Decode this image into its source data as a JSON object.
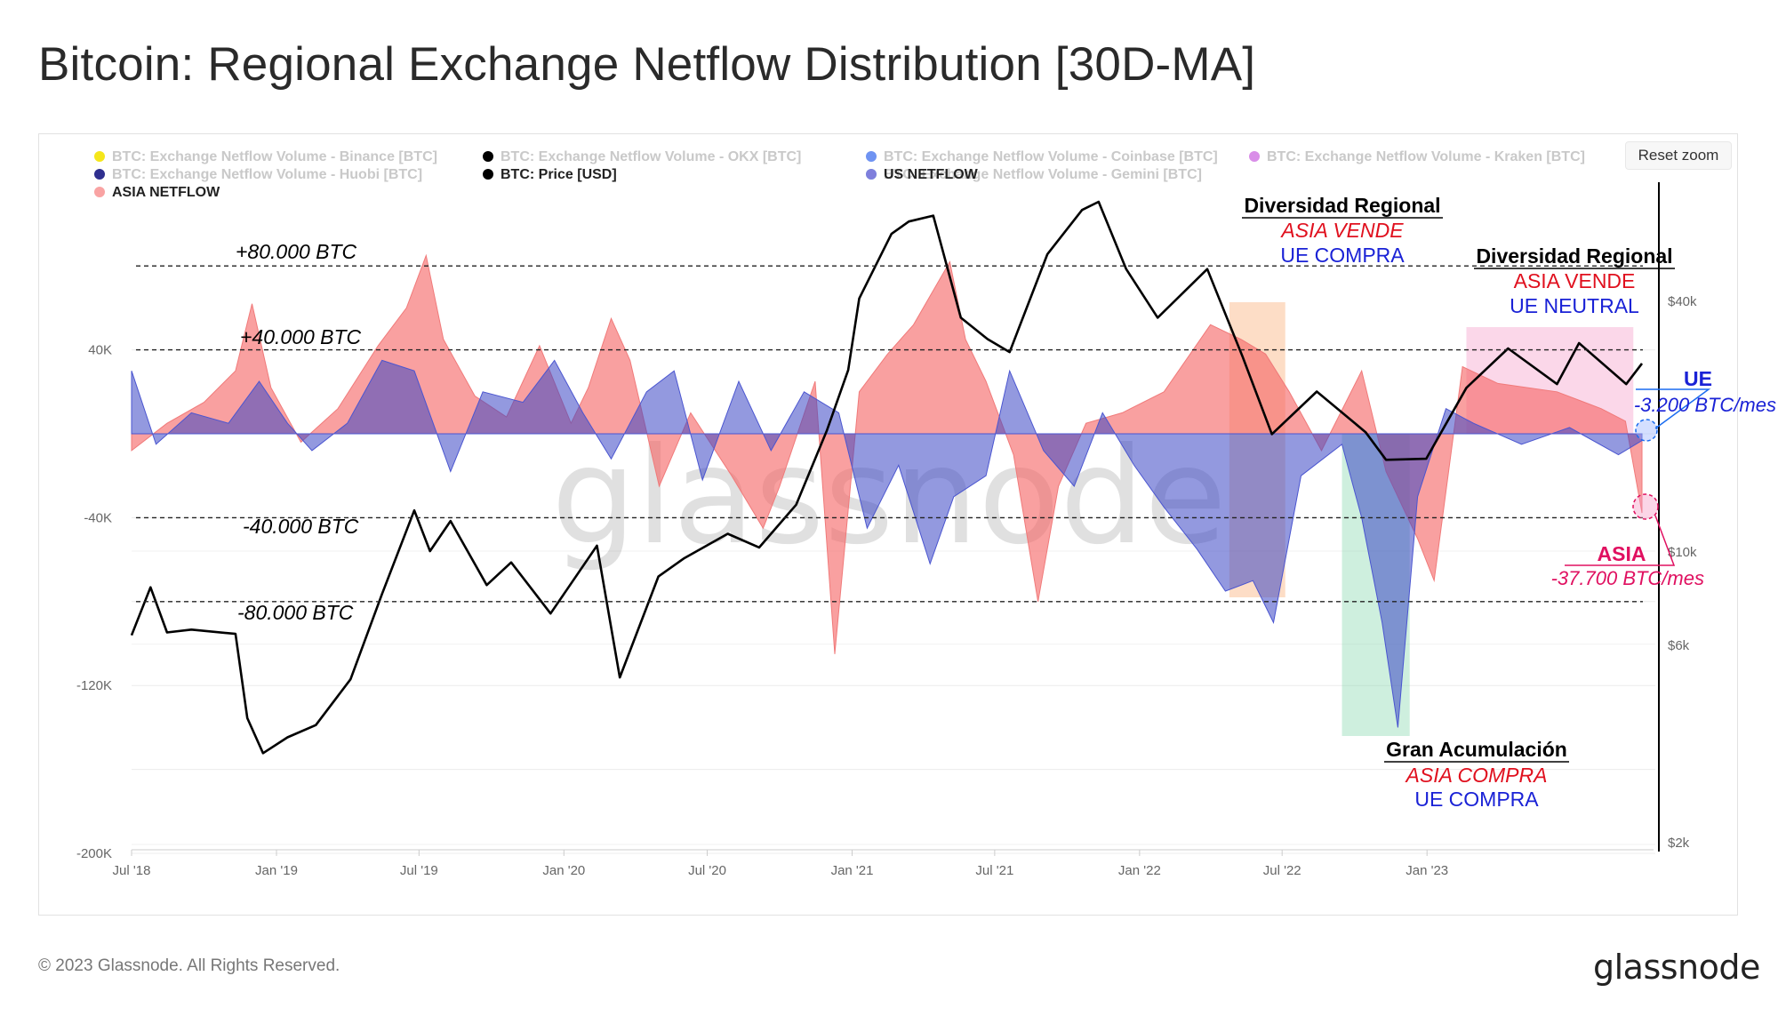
{
  "title": "Bitcoin: Regional Exchange Netflow Distribution [30D-MA]",
  "reset_zoom": "Reset zoom",
  "copyright": "© 2023 Glassnode. All Rights Reserved.",
  "brand": "glassnode",
  "watermark": "glassnode",
  "colors": {
    "asia": "#f56565",
    "us": "#3a45c4",
    "price": "#000000",
    "orange_box": "#f9a66a",
    "green_box": "#7fd6a8",
    "pink_box": "#f497c4",
    "red_text": "#e0101e",
    "blue_text": "#1a22d6"
  },
  "legend": [
    {
      "label": "BTC: Exchange Netflow Volume - Binance [BTC]",
      "color": "#f5e61a",
      "active": false
    },
    {
      "label": "BTC: Exchange Netflow Volume - OKX [BTC]",
      "color": "#000000",
      "active": false
    },
    {
      "label": "BTC: Exchange Netflow Volume - Coinbase [BTC]",
      "color": "#6f93f2",
      "active": false
    },
    {
      "label": "BTC: Exchange Netflow Volume - Kraken [BTC]",
      "color": "#d98ee8",
      "active": false
    },
    {
      "label": "BTC: Exchange Netflow Volume - Huobi [BTC]",
      "color": "#2f2f8f",
      "active": false
    },
    {
      "label": "BTC: Price [USD]",
      "color": "#000000",
      "active": true
    },
    {
      "label": "BTC: Exchange Netflow Volume - Gemini [BTC]",
      "color": "#6fe9f0",
      "active": false
    },
    {
      "label": "US NETFLOW",
      "color": "#7f7fdc",
      "active": true
    },
    {
      "label": "ASIA NETFLOW",
      "color": "#f9a3a3",
      "active": true
    }
  ],
  "annotations": {
    "level_p80": "+80.000 BTC",
    "level_p40": "+40.000 BTC",
    "level_m40": "-40.000 BTC",
    "level_m80": "-80.000 BTC",
    "div1_head": "Diversidad Regional",
    "div1_l1": "ASIA VENDE",
    "div1_l2": "UE COMPRA",
    "div2_head": "Diversidad Regional",
    "div2_l1": "ASIA VENDE",
    "div2_l2": "UE NEUTRAL",
    "acc_head": "Gran Acumulación",
    "acc_l1": "ASIA COMPRA",
    "acc_l2": "UE COMPRA",
    "ue_head": "UE",
    "ue_val": "-3.200 BTC/mes",
    "asia_head": "ASIA",
    "asia_val": "-37.700 BTC/mes"
  },
  "chart_data": {
    "type": "area",
    "x_ticks": [
      "Jul '18",
      "Jan '19",
      "Jul '19",
      "Jan '20",
      "Jul '20",
      "Jan '21",
      "Jul '21",
      "Jan '22",
      "Jul '22",
      "Jan '23"
    ],
    "x_range": [
      "2018-07-01",
      "2023-10-10"
    ],
    "y_left_ticks": [
      "40K",
      "-40K",
      "-120K",
      "-200K"
    ],
    "y_left_range": [
      -200000,
      45000
    ],
    "y_right_ticks": [
      "$40k",
      "$10k",
      "$6k",
      "$2k"
    ],
    "y_right_scale": "log",
    "y_right_range": [
      2000,
      100000
    ],
    "reference_lines": [
      80000,
      40000,
      -40000,
      -80000
    ],
    "series": [
      {
        "name": "ASIA NETFLOW",
        "kind": "area",
        "points": [
          [
            "2018-07-01",
            -8000
          ],
          [
            "2018-08-15",
            5000
          ],
          [
            "2018-10-01",
            15000
          ],
          [
            "2018-11-10",
            30000
          ],
          [
            "2018-12-01",
            62000
          ],
          [
            "2018-12-25",
            22000
          ],
          [
            "2019-02-01",
            -4000
          ],
          [
            "2019-03-20",
            12000
          ],
          [
            "2019-05-10",
            42000
          ],
          [
            "2019-06-15",
            60000
          ],
          [
            "2019-07-10",
            85000
          ],
          [
            "2019-08-01",
            45000
          ],
          [
            "2019-09-10",
            18000
          ],
          [
            "2019-10-20",
            8000
          ],
          [
            "2019-12-01",
            42000
          ],
          [
            "2020-01-10",
            5000
          ],
          [
            "2020-02-01",
            22000
          ],
          [
            "2020-03-01",
            55000
          ],
          [
            "2020-03-25",
            35000
          ],
          [
            "2020-05-01",
            -25000
          ],
          [
            "2020-06-10",
            10000
          ],
          [
            "2020-08-01",
            -20000
          ],
          [
            "2020-09-10",
            -45000
          ],
          [
            "2020-10-01",
            -25000
          ],
          [
            "2020-11-15",
            25000
          ],
          [
            "2020-12-10",
            -105000
          ],
          [
            "2021-01-10",
            20000
          ],
          [
            "2021-02-15",
            38000
          ],
          [
            "2021-03-20",
            52000
          ],
          [
            "2021-05-05",
            82000
          ],
          [
            "2021-05-25",
            45000
          ],
          [
            "2021-06-20",
            25000
          ],
          [
            "2021-07-25",
            -10000
          ],
          [
            "2021-08-25",
            -80000
          ],
          [
            "2021-09-20",
            -25000
          ],
          [
            "2021-10-25",
            5000
          ],
          [
            "2021-12-10",
            10000
          ],
          [
            "2022-02-01",
            20000
          ],
          [
            "2022-04-01",
            52000
          ],
          [
            "2022-05-10",
            45000
          ],
          [
            "2022-06-10",
            38000
          ],
          [
            "2022-07-10",
            20000
          ],
          [
            "2022-08-20",
            -8000
          ],
          [
            "2022-10-10",
            30000
          ],
          [
            "2022-11-10",
            -18000
          ],
          [
            "2022-12-20",
            -50000
          ],
          [
            "2023-01-10",
            -70000
          ],
          [
            "2023-02-15",
            32000
          ],
          [
            "2023-04-01",
            24000
          ],
          [
            "2023-06-15",
            20000
          ],
          [
            "2023-08-10",
            12000
          ],
          [
            "2023-09-10",
            6000
          ],
          [
            "2023-10-01",
            -37700
          ]
        ]
      },
      {
        "name": "US NETFLOW",
        "kind": "area",
        "points": [
          [
            "2018-07-01",
            30000
          ],
          [
            "2018-08-01",
            -5000
          ],
          [
            "2018-09-15",
            10000
          ],
          [
            "2018-11-01",
            5000
          ],
          [
            "2018-12-10",
            25000
          ],
          [
            "2019-01-15",
            5000
          ],
          [
            "2019-02-15",
            -8000
          ],
          [
            "2019-04-01",
            5000
          ],
          [
            "2019-05-15",
            35000
          ],
          [
            "2019-06-25",
            30000
          ],
          [
            "2019-08-10",
            -18000
          ],
          [
            "2019-09-20",
            20000
          ],
          [
            "2019-11-10",
            15000
          ],
          [
            "2019-12-20",
            35000
          ],
          [
            "2020-01-25",
            10000
          ],
          [
            "2020-03-01",
            -12000
          ],
          [
            "2020-04-15",
            20000
          ],
          [
            "2020-05-20",
            30000
          ],
          [
            "2020-06-25",
            -22000
          ],
          [
            "2020-08-10",
            25000
          ],
          [
            "2020-09-20",
            -8000
          ],
          [
            "2020-11-01",
            20000
          ],
          [
            "2020-12-15",
            10000
          ],
          [
            "2021-01-20",
            -45000
          ],
          [
            "2021-03-01",
            -15000
          ],
          [
            "2021-04-10",
            -62000
          ],
          [
            "2021-05-10",
            -30000
          ],
          [
            "2021-06-20",
            -20000
          ],
          [
            "2021-07-20",
            30000
          ],
          [
            "2021-09-01",
            -8000
          ],
          [
            "2021-10-10",
            -25000
          ],
          [
            "2021-11-15",
            10000
          ],
          [
            "2021-12-25",
            -15000
          ],
          [
            "2022-02-01",
            -35000
          ],
          [
            "2022-03-15",
            -55000
          ],
          [
            "2022-04-20",
            -75000
          ],
          [
            "2022-05-25",
            -70000
          ],
          [
            "2022-06-20",
            -90000
          ],
          [
            "2022-07-25",
            -20000
          ],
          [
            "2022-09-15",
            -5000
          ],
          [
            "2022-10-10",
            -40000
          ],
          [
            "2022-11-05",
            -90000
          ],
          [
            "2022-11-25",
            -140000
          ],
          [
            "2022-12-20",
            -30000
          ],
          [
            "2023-01-25",
            12000
          ],
          [
            "2023-03-01",
            5000
          ],
          [
            "2023-05-01",
            -5000
          ],
          [
            "2023-07-01",
            3000
          ],
          [
            "2023-09-01",
            -10000
          ],
          [
            "2023-10-01",
            -3200
          ]
        ]
      },
      {
        "name": "BTC: Price [USD]",
        "kind": "line",
        "points": [
          [
            "2018-07-01",
            6300
          ],
          [
            "2018-07-25",
            8200
          ],
          [
            "2018-08-15",
            6400
          ],
          [
            "2018-09-15",
            6500
          ],
          [
            "2018-11-10",
            6350
          ],
          [
            "2018-11-25",
            4000
          ],
          [
            "2018-12-15",
            3300
          ],
          [
            "2019-01-15",
            3600
          ],
          [
            "2019-02-20",
            3850
          ],
          [
            "2019-04-05",
            4950
          ],
          [
            "2019-05-15",
            7900
          ],
          [
            "2019-06-25",
            12500
          ],
          [
            "2019-07-15",
            10000
          ],
          [
            "2019-08-10",
            11800
          ],
          [
            "2019-09-25",
            8300
          ],
          [
            "2019-10-26",
            9400
          ],
          [
            "2019-12-15",
            7100
          ],
          [
            "2020-02-12",
            10300
          ],
          [
            "2020-03-12",
            5000
          ],
          [
            "2020-04-30",
            8700
          ],
          [
            "2020-06-01",
            9600
          ],
          [
            "2020-07-27",
            11000
          ],
          [
            "2020-09-05",
            10200
          ],
          [
            "2020-10-22",
            12900
          ],
          [
            "2020-11-30",
            19400
          ],
          [
            "2020-12-27",
            27000
          ],
          [
            "2021-01-10",
            40000
          ],
          [
            "2021-02-20",
            57000
          ],
          [
            "2021-03-14",
            61000
          ],
          [
            "2021-04-14",
            63000
          ],
          [
            "2021-05-19",
            36000
          ],
          [
            "2021-06-22",
            32000
          ],
          [
            "2021-07-20",
            29800
          ],
          [
            "2021-09-06",
            51000
          ],
          [
            "2021-10-20",
            65000
          ],
          [
            "2021-11-10",
            68000
          ],
          [
            "2021-12-15",
            47000
          ],
          [
            "2022-01-24",
            36000
          ],
          [
            "2022-03-28",
            47000
          ],
          [
            "2022-05-12",
            29000
          ],
          [
            "2022-06-18",
            19000
          ],
          [
            "2022-08-14",
            24000
          ],
          [
            "2022-10-15",
            19200
          ],
          [
            "2022-11-10",
            16500
          ],
          [
            "2022-12-31",
            16600
          ],
          [
            "2023-02-20",
            24500
          ],
          [
            "2023-04-14",
            30400
          ],
          [
            "2023-06-15",
            25000
          ],
          [
            "2023-07-13",
            31300
          ],
          [
            "2023-09-11",
            25000
          ],
          [
            "2023-10-01",
            28000
          ]
        ]
      }
    ],
    "highlight_ranges": [
      {
        "from": "2022-04-25",
        "to": "2022-07-05",
        "color": "orange"
      },
      {
        "from": "2022-09-15",
        "to": "2022-12-10",
        "color": "green"
      },
      {
        "from": "2023-02-20",
        "to": "2023-09-20",
        "color": "pink"
      }
    ]
  }
}
